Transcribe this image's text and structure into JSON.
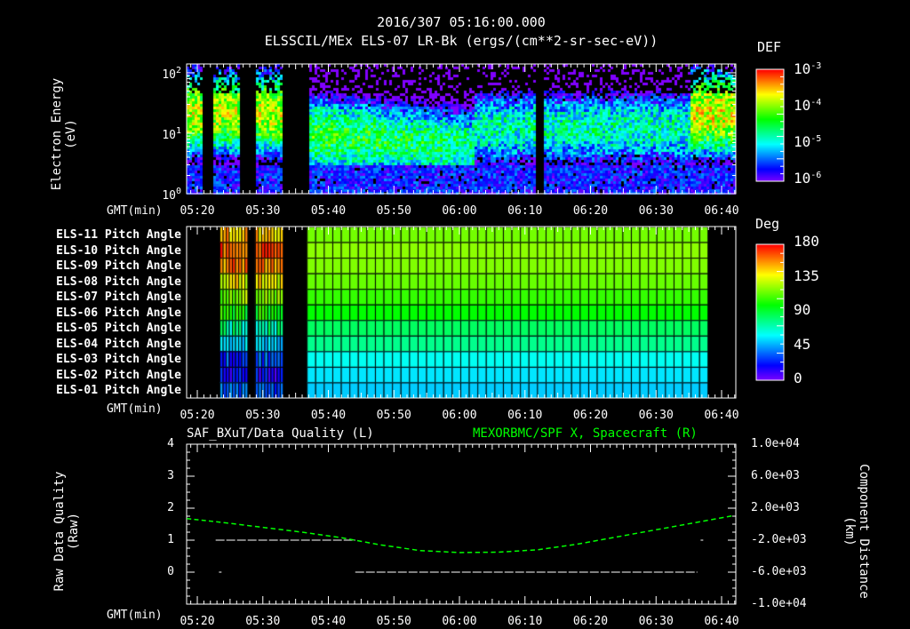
{
  "header": {
    "timestamp": "2016/307 05:16:00.000",
    "title": "ELSSCIL/MEx ELS-07 LR-Bk  (ergs/(cm**2-sr-sec-eV))"
  },
  "time_ticks": [
    "05:20",
    "05:30",
    "05:40",
    "05:50",
    "06:00",
    "06:10",
    "06:20",
    "06:30",
    "06:40"
  ],
  "gmt_label": "GMT(min)",
  "chart_data": [
    {
      "type": "heatmap",
      "name": "electron-energy-spectrogram",
      "ylabel": [
        "Electron Energy",
        "(eV)"
      ],
      "yscale": "log",
      "ylim": [
        1,
        140
      ],
      "ytick_labels": [
        {
          "base": "10",
          "exp": "0"
        },
        {
          "base": "10",
          "exp": "1"
        },
        {
          "base": "10",
          "exp": "2"
        }
      ],
      "xlim_minutes_after_0500": [
        18.37,
        102.17
      ],
      "data_gaps_minutes": [
        [
          20.8,
          22.4
        ],
        [
          26.5,
          28.8
        ],
        [
          33.0,
          36.7
        ]
      ],
      "colorbar": {
        "label": "DEF",
        "scale": "log",
        "range": [
          1e-06,
          0.001
        ],
        "tick_labels": [
          {
            "base": "10",
            "exp": "-3"
          },
          {
            "base": "10",
            "exp": "-4"
          },
          {
            "base": "10",
            "exp": "-5"
          },
          {
            "base": "10",
            "exp": "-6"
          }
        ]
      }
    },
    {
      "type": "heatmap",
      "name": "pitch-angle",
      "row_labels": [
        "ELS-11 Pitch Angle",
        "ELS-10 Pitch Angle",
        "ELS-09 Pitch Angle",
        "ELS-08 Pitch Angle",
        "ELS-07 Pitch Angle",
        "ELS-06 Pitch Angle",
        "ELS-05 Pitch Angle",
        "ELS-04 Pitch Angle",
        "ELS-03 Pitch Angle",
        "ELS-02 Pitch Angle",
        "ELS-01 Pitch Angle"
      ],
      "data_intervals_minutes": [
        [
          23.4,
          27.2
        ],
        [
          28.8,
          33.0
        ],
        [
          36.7,
          97.0
        ]
      ],
      "main_interval_values_deg": [
        118,
        122,
        120,
        116,
        108,
        100,
        85,
        78,
        62,
        56,
        52
      ],
      "early_interval_values_deg": [
        150,
        165,
        160,
        140,
        120,
        100,
        75,
        60,
        30,
        20,
        35
      ],
      "colorbar": {
        "label": "Deg",
        "range": [
          0,
          180
        ],
        "tick_labels": [
          "180",
          "135",
          "90",
          "45",
          "0"
        ]
      }
    },
    {
      "type": "line",
      "name": "quality-and-position",
      "left_title": "SAF_BXuT/Data Quality (L)",
      "right_title": "MEXORBMC/SPF X, Spacecraft (R)",
      "ylabel_left": [
        "Raw Data Quality",
        "(Raw)"
      ],
      "ylabel_right": [
        "Component Distance",
        "(km)"
      ],
      "ylim_left": [
        -1,
        4
      ],
      "ylim_right": [
        -10000,
        10000
      ],
      "left_tick_labels": [
        "4",
        "3",
        "2",
        "1",
        "0"
      ],
      "right_tick_labels": [
        "1.0e+04",
        "6.0e+03",
        "2.0e+03",
        "-2.0e+03",
        "-6.0e+03",
        "-1.0e+04"
      ],
      "series": [
        {
          "name": "Data Quality",
          "color": "#ffffff",
          "axis": "left",
          "segments": [
            {
              "t": [
                23.3,
                23.7
              ],
              "value": 0
            },
            {
              "t": [
                22.8,
                44.1
              ],
              "value": 1
            },
            {
              "t": [
                44.1,
                96.3
              ],
              "value": 0
            },
            {
              "t": [
                96.8,
                97.2
              ],
              "value": 1
            }
          ]
        },
        {
          "name": "SPF X",
          "color": "#00ff00",
          "axis": "right",
          "x": [
            18.4,
            24,
            30,
            36,
            42,
            48,
            54,
            60,
            66,
            72,
            78,
            84,
            90,
            96,
            102
          ],
          "values": [
            700,
            200,
            -400,
            -1000,
            -1700,
            -2600,
            -3300,
            -3550,
            -3500,
            -3200,
            -2500,
            -1600,
            -700,
            200,
            1100
          ]
        }
      ]
    }
  ]
}
